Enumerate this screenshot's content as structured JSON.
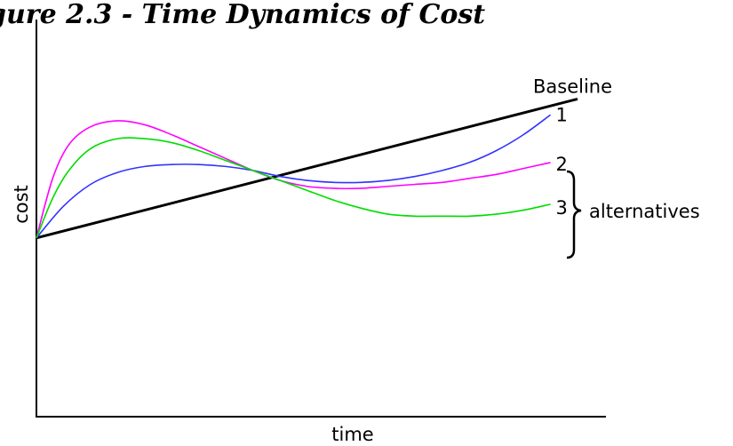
{
  "chart_data": {
    "type": "line",
    "title": "gure 2.3 - Time Dynamics of Cost",
    "xlabel": "time",
    "ylabel": "cost",
    "xlim": [
      0,
      10
    ],
    "ylim": [
      0,
      10
    ],
    "grid": false,
    "bracket_label": "alternatives",
    "series": [
      {
        "name": "Baseline",
        "color": "#000000",
        "x": [
          0,
          10
        ],
        "y": [
          4.5,
          8.0
        ]
      },
      {
        "name": "1",
        "color": "#3333ff",
        "x": [
          0,
          0.5,
          1.0,
          1.5,
          2.0,
          2.5,
          3.0,
          3.5,
          4.0,
          4.5,
          5.0,
          5.5,
          6.0,
          6.5,
          7.0,
          7.5,
          8.0,
          8.5,
          9.0,
          9.5
        ],
        "y": [
          4.5,
          5.3,
          5.85,
          6.15,
          6.3,
          6.35,
          6.35,
          6.3,
          6.2,
          6.05,
          5.95,
          5.9,
          5.9,
          5.95,
          6.05,
          6.2,
          6.4,
          6.7,
          7.1,
          7.6
        ]
      },
      {
        "name": "2",
        "color": "#ff00ff",
        "x": [
          0,
          0.3,
          0.6,
          1.0,
          1.5,
          2.0,
          2.5,
          3.0,
          3.5,
          4.0,
          4.5,
          5.0,
          5.5,
          6.0,
          6.5,
          7.0,
          7.5,
          8.0,
          8.5,
          9.0,
          9.5
        ],
        "y": [
          4.5,
          6.0,
          6.85,
          7.3,
          7.45,
          7.35,
          7.1,
          6.8,
          6.5,
          6.2,
          5.95,
          5.8,
          5.75,
          5.75,
          5.8,
          5.85,
          5.9,
          6.0,
          6.1,
          6.25,
          6.4
        ]
      },
      {
        "name": "3",
        "color": "#00dd00",
        "x": [
          0,
          0.3,
          0.6,
          1.0,
          1.5,
          2.0,
          2.5,
          3.0,
          3.5,
          4.0,
          4.5,
          5.0,
          5.5,
          6.0,
          6.5,
          7.0,
          7.5,
          8.0,
          8.5,
          9.0,
          9.5
        ],
        "y": [
          4.5,
          5.5,
          6.2,
          6.75,
          7.0,
          7.0,
          6.9,
          6.7,
          6.45,
          6.2,
          5.95,
          5.7,
          5.45,
          5.25,
          5.1,
          5.05,
          5.05,
          5.05,
          5.1,
          5.2,
          5.35
        ]
      }
    ]
  }
}
